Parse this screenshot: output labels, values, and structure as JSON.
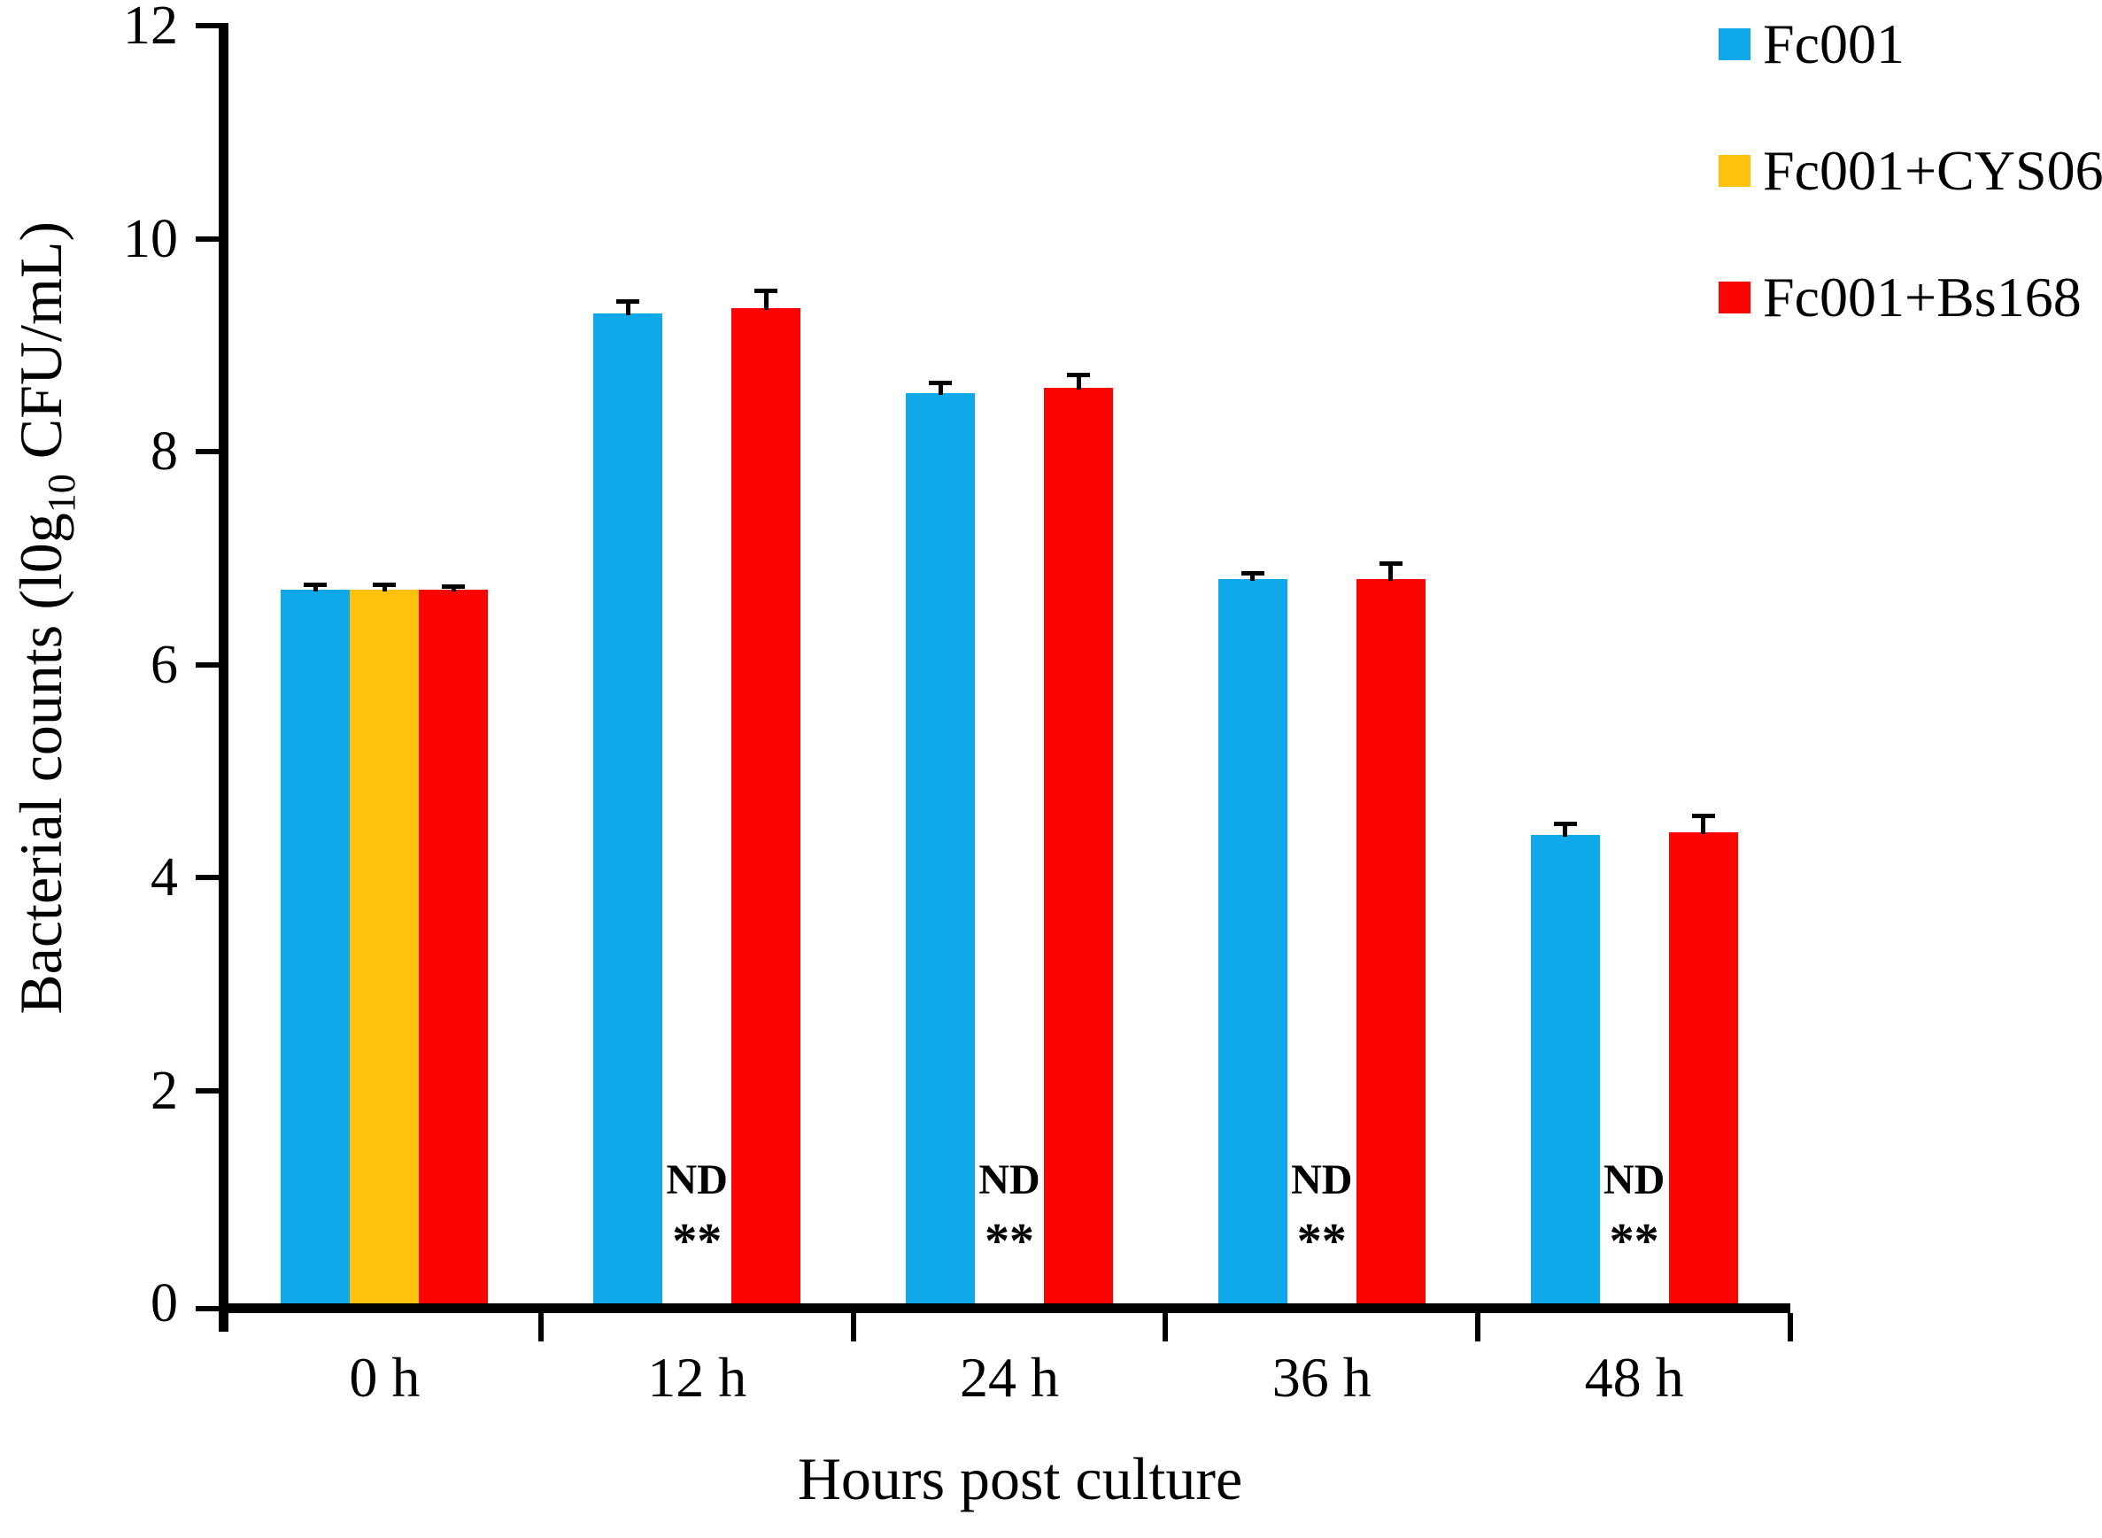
{
  "chart_data": {
    "type": "bar",
    "title": "",
    "xlabel": "Hours post culture",
    "ylabel_prefix": "Bacterial counts (l0g",
    "ylabel_sub": "10",
    "ylabel_suffix": " CFU/mL)",
    "categories": [
      "0 h",
      "12 h",
      "24 h",
      "36 h",
      "48 h"
    ],
    "y_ticks": [
      0,
      2,
      4,
      6,
      8,
      10,
      12
    ],
    "ylim": [
      0,
      12
    ],
    "grid": false,
    "legend_position": "top-right",
    "series": [
      {
        "name": "Fc001",
        "color": "#0FA9EA",
        "values": [
          6.7,
          9.3,
          8.55,
          6.8,
          4.4
        ],
        "errors": [
          0.05,
          0.11,
          0.1,
          0.06,
          0.11
        ]
      },
      {
        "name": "Fc001+CYS06",
        "color": "#FEC10D",
        "values": [
          6.7,
          null,
          null,
          null,
          null
        ],
        "errors": [
          0.05,
          null,
          null,
          null,
          null
        ]
      },
      {
        "name": "Fc001+Bs168",
        "color": "#FB0404",
        "values": [
          6.7,
          9.35,
          8.6,
          6.8,
          4.42
        ],
        "errors": [
          0.04,
          0.16,
          0.12,
          0.15,
          0.16
        ]
      }
    ],
    "annotations": {
      "nd_label": "ND",
      "sig_label": "**",
      "nd_series": "Fc001+CYS06",
      "nd_groups": [
        1,
        2,
        3,
        4
      ]
    }
  },
  "colors": {
    "axis": "#000000",
    "text": "#000000",
    "background": "#ffffff"
  }
}
